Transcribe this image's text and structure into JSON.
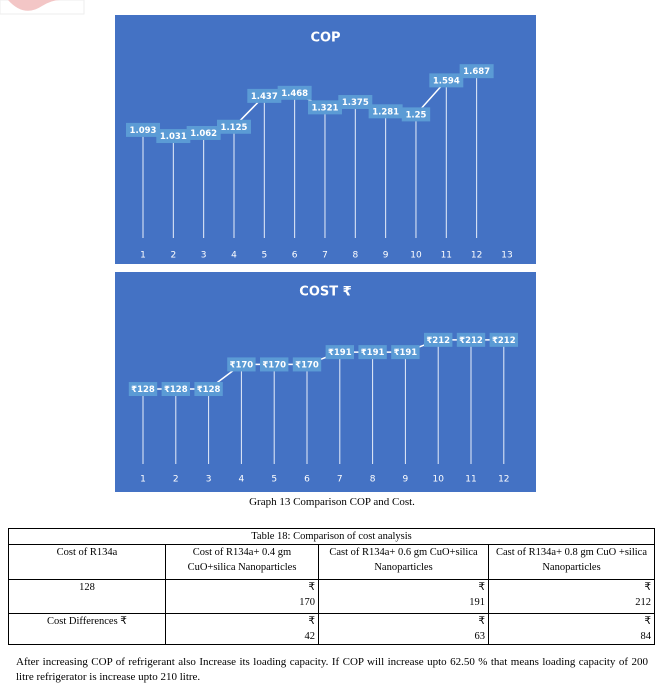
{
  "chart_data": [
    {
      "type": "line",
      "title": "COP",
      "categories": [
        "1",
        "2",
        "3",
        "4",
        "5",
        "6",
        "7",
        "8",
        "9",
        "10",
        "11",
        "12",
        "13"
      ],
      "values": [
        1.093,
        1.031,
        1.062,
        1.125,
        1.437,
        1.468,
        1.321,
        1.375,
        1.281,
        1.25,
        1.594,
        1.687,
        null
      ],
      "ylim": [
        0,
        1.8
      ],
      "color": "#ffffff",
      "background": "#4472c4",
      "label_color": "#5b9bd5",
      "drop_lines": true
    },
    {
      "type": "line",
      "title": "COST ₹",
      "categories": [
        "1",
        "2",
        "3",
        "4",
        "5",
        "6",
        "7",
        "8",
        "9",
        "10",
        "11",
        "12"
      ],
      "values": [
        128,
        128,
        128,
        170,
        170,
        170,
        191,
        191,
        191,
        212,
        212,
        212
      ],
      "value_labels": [
        "₹128",
        "₹128",
        "₹128",
        "₹170",
        "₹170",
        "₹170",
        "₹191",
        "₹191",
        "₹191",
        "₹212",
        "₹212",
        "₹212"
      ],
      "ylim": [
        0,
        280
      ],
      "color": "#ffffff",
      "background": "#4472c4",
      "label_color": "#5b9bd5",
      "drop_lines": true
    }
  ],
  "caption": "Graph 13 Comparison COP and Cost.",
  "table": {
    "title": "Table 18: Comparison of cost analysis",
    "header": [
      "Cost of R134a",
      "Cost of R134a+ 0.4 gm CuO+silica Nanoparticles",
      "Cast of R134a+ 0.6 gm CuO+silica  Nanoparticles",
      "Cast of R134a+ 0.8 gm CuO +silica Nanoparticles"
    ],
    "rows": [
      {
        "label": "128",
        "cells": [
          {
            "currency": "₹",
            "amount": "170"
          },
          {
            "currency": "₹",
            "amount": "191"
          },
          {
            "currency": "₹",
            "amount": "212"
          }
        ]
      },
      {
        "label": "Cost Differences ₹",
        "cells": [
          {
            "currency": "₹",
            "amount": "42"
          },
          {
            "currency": "₹",
            "amount": "63"
          },
          {
            "currency": "₹",
            "amount": "84"
          }
        ]
      }
    ]
  },
  "paragraph": "After increasing COP of refrigerant also Increase its loading capacity. If COP will increase upto 62.50 % that means loading capacity of 200 litre refrigerator is increase upto 210 litre."
}
